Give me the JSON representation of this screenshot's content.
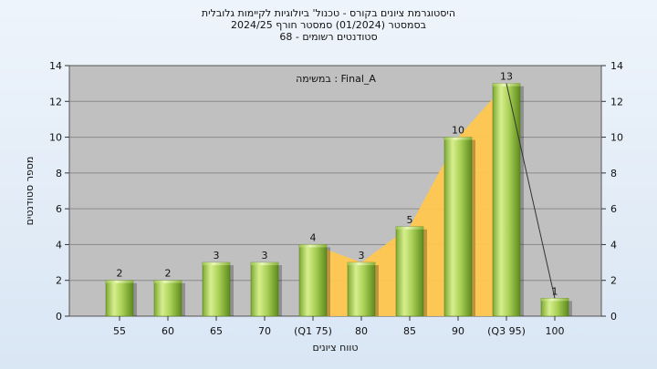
{
  "chart_data": {
    "type": "bar",
    "title": "היסטוגרמת ציונים בקורס - טכנול' ביולוגיות לקיימות גלובלית",
    "subtitle_1": "בסמסטר  (01/2024)  סמסטר חורף 2024/25",
    "subtitle_2": "סטודנטים רשומים - 68",
    "annotation": "במשימה : Final_A",
    "xlabel": "טווח ציונים",
    "ylabel": "מספר סטודנטים",
    "categories": [
      "55",
      "60",
      "65",
      "70",
      "(Q1 75)",
      "80",
      "85",
      "90",
      "(Q3 95)",
      "100"
    ],
    "values": [
      2,
      2,
      3,
      3,
      4,
      3,
      5,
      10,
      13,
      1
    ],
    "data_labels": [
      "2",
      "2",
      "3",
      "3",
      "4",
      "3",
      "5",
      "10",
      "13",
      "1"
    ],
    "ylim": [
      0,
      14
    ],
    "yticks": [
      "0",
      "2",
      "4",
      "6",
      "8",
      "10",
      "12",
      "14"
    ],
    "yticks_right": [
      "0",
      "2",
      "4",
      "6",
      "8",
      "10",
      "12",
      "14"
    ],
    "grid": "y",
    "colors": {
      "plot_bg": "#c0c0c0",
      "bar_light": "#d7ef8e",
      "bar_mid": "#9cc64a",
      "bar_dark": "#5e8a1e",
      "area": "#ffc74f",
      "line": "#333333"
    }
  }
}
